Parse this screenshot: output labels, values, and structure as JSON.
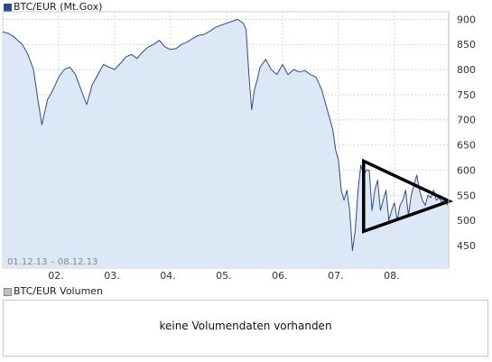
{
  "legend": {
    "price_label": "BTC/EUR (Mt.Gox)",
    "price_color": "#2a4d8f",
    "volume_label": "BTC/EUR Volumen",
    "volume_color": "#bfbfbf"
  },
  "volume_panel": {
    "message": "keine Volumendaten vorhanden"
  },
  "chart_data": {
    "type": "line",
    "date_range_label": "01.12.13 – 08.12.13",
    "x_tick_labels": [
      "02.",
      "03.",
      "04.",
      "05.",
      "06.",
      "07.",
      "08."
    ],
    "y_ticks": [
      450,
      500,
      550,
      600,
      650,
      700,
      750,
      800,
      850,
      900
    ],
    "ylim": [
      405,
      915
    ],
    "xlim": [
      1.0,
      8.97
    ],
    "y_axis_side": "right",
    "grid": "vertical and horizontal, dashed",
    "series": [
      {
        "color": "#2a4d8f",
        "fill": "#dde8f7",
        "x": [
          1.0,
          1.1,
          1.2,
          1.35,
          1.45,
          1.55,
          1.63,
          1.7,
          1.8,
          1.9,
          2.0,
          2.1,
          2.2,
          2.3,
          2.4,
          2.5,
          2.6,
          2.7,
          2.8,
          2.9,
          3.0,
          3.1,
          3.2,
          3.3,
          3.4,
          3.5,
          3.6,
          3.7,
          3.8,
          3.9,
          4.0,
          4.1,
          4.2,
          4.3,
          4.4,
          4.5,
          4.6,
          4.7,
          4.8,
          4.9,
          5.0,
          5.1,
          5.2,
          5.3,
          5.35,
          5.4,
          5.45,
          5.5,
          5.55,
          5.6,
          5.7,
          5.8,
          5.9,
          6.0,
          6.1,
          6.2,
          6.3,
          6.4,
          6.5,
          6.6,
          6.7,
          6.8,
          6.9,
          6.95,
          7.0,
          7.05,
          7.1,
          7.15,
          7.2,
          7.25,
          7.3,
          7.35,
          7.4,
          7.45,
          7.5,
          7.55,
          7.6,
          7.65,
          7.7,
          7.75,
          7.8,
          7.85,
          7.9,
          7.95,
          8.0,
          8.05,
          8.1,
          8.15,
          8.2,
          8.25,
          8.3,
          8.35,
          8.4,
          8.45,
          8.5,
          8.55,
          8.6,
          8.65,
          8.7,
          8.75,
          8.8,
          8.85,
          8.9,
          8.95
        ],
        "values": [
          875,
          872,
          865,
          850,
          830,
          800,
          740,
          690,
          740,
          760,
          785,
          800,
          805,
          790,
          760,
          730,
          770,
          790,
          810,
          805,
          800,
          812,
          825,
          830,
          822,
          835,
          845,
          850,
          858,
          845,
          840,
          842,
          850,
          855,
          862,
          868,
          870,
          876,
          884,
          888,
          892,
          896,
          900,
          892,
          880,
          790,
          720,
          760,
          780,
          805,
          820,
          800,
          790,
          810,
          790,
          800,
          795,
          798,
          790,
          785,
          760,
          720,
          680,
          640,
          620,
          560,
          540,
          560,
          520,
          440,
          480,
          560,
          610,
          590,
          600,
          600,
          520,
          560,
          580,
          520,
          540,
          560,
          500,
          520,
          535,
          500,
          530,
          540,
          560,
          510,
          550,
          570,
          590,
          560,
          540,
          530,
          550,
          545,
          560,
          540,
          545,
          535,
          545,
          530
        ]
      }
    ],
    "annotations": [
      {
        "type": "triangle-pennant",
        "points": [
          [
            7.45,
            618
          ],
          [
            8.98,
            538
          ],
          [
            7.45,
            478
          ]
        ]
      }
    ]
  }
}
